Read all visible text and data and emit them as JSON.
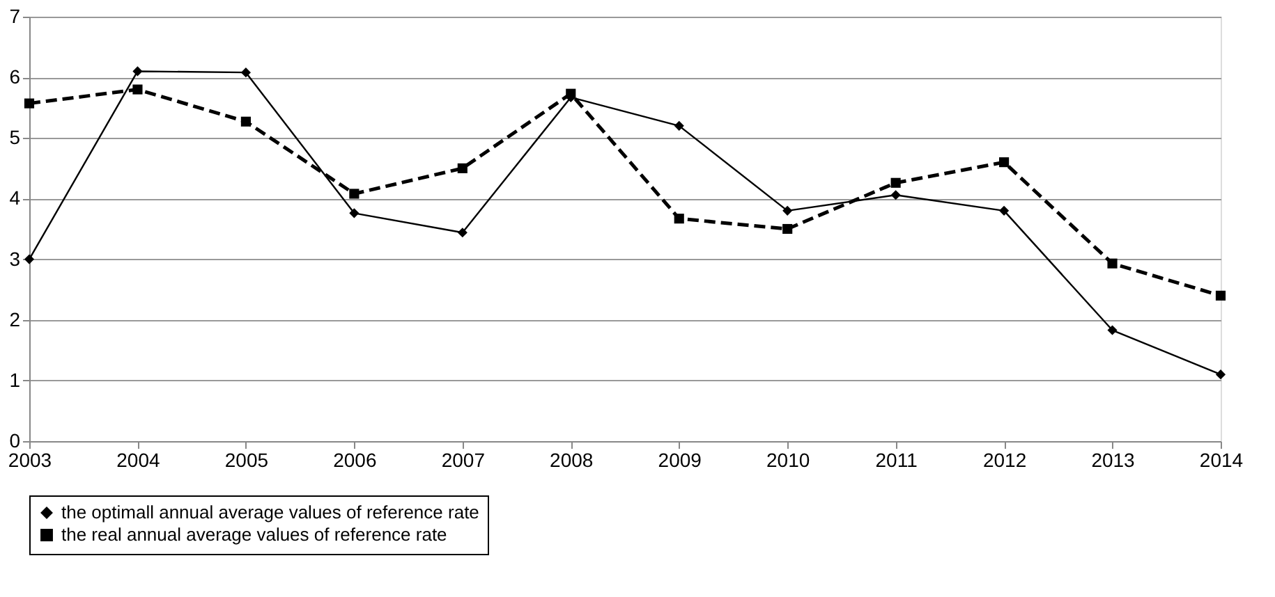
{
  "chart_data": {
    "type": "line",
    "x": [
      2003,
      2004,
      2005,
      2006,
      2007,
      2008,
      2009,
      2010,
      2011,
      2012,
      2013,
      2014
    ],
    "xlim": [
      2003,
      2014
    ],
    "xticks": [
      2003,
      2004,
      2005,
      2006,
      2007,
      2008,
      2009,
      2010,
      2011,
      2012,
      2013,
      2014
    ],
    "ylim": [
      0,
      7
    ],
    "yticks": [
      0,
      1,
      2,
      3,
      4,
      5,
      6,
      7
    ],
    "grid": "y",
    "legend": "bottom",
    "series": [
      {
        "name": "the optimall annual average values of reference rate",
        "color": "#000000",
        "marker": "diamond",
        "line_style": "solid",
        "values": [
          3.0,
          6.1,
          6.08,
          3.76,
          3.44,
          5.67,
          5.2,
          3.8,
          4.06,
          3.8,
          1.83,
          1.1
        ]
      },
      {
        "name": "the real annual average values of reference rate",
        "color": "#000000",
        "marker": "square",
        "line_style": "dashed",
        "values": [
          5.57,
          5.8,
          5.27,
          4.08,
          4.5,
          5.73,
          3.67,
          3.5,
          4.26,
          4.6,
          2.93,
          2.4
        ]
      }
    ]
  }
}
